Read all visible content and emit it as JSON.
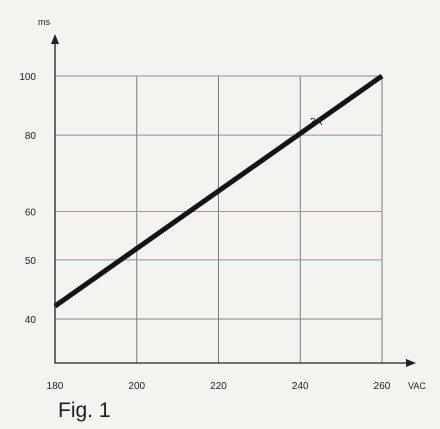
{
  "chart_data": {
    "type": "line",
    "xlabel": "VAC",
    "ylabel": "ms",
    "xlim": [
      180,
      260
    ],
    "ylim": [
      40,
      100
    ],
    "yscale": "log",
    "x_ticks": [
      180,
      200,
      220,
      240,
      260
    ],
    "y_ticks": [
      40,
      50,
      60,
      80,
      100
    ],
    "grid": true,
    "series": [
      {
        "name": "3A",
        "x": [
          180,
          260
        ],
        "y": [
          42,
          100
        ]
      }
    ]
  },
  "caption": "Fig. 1",
  "colors": {
    "background": "#f4f3f0",
    "line": "#141414",
    "grid_vertical": "#7d7d7d",
    "grid_y40": "#7f7f9a",
    "grid_y50": "#6fa2a0",
    "grid_y60": "#86a08e",
    "grid_y80": "#6aa49a",
    "grid_y100": "#8f8aa6"
  }
}
